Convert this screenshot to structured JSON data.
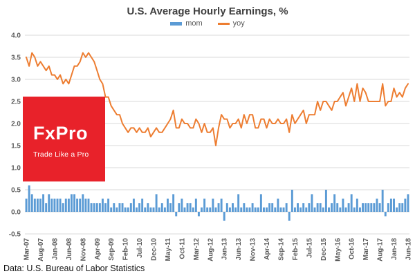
{
  "title": "U.S. Average Hourly Earnings,  %",
  "footer": "Data: U.S. Bureau of Labor Statistics",
  "legend": [
    {
      "label": "mom",
      "color": "#5B9BD5"
    },
    {
      "label": "yoy",
      "color": "#ED7D31"
    }
  ],
  "logo": {
    "line1": "FxPro",
    "line2": "Trade Like a Pro",
    "bg": "#e8222a"
  },
  "chart_data": {
    "type": "bar+line",
    "title": "U.S. Average Hourly Earnings, %",
    "xlabel": "",
    "ylabel": "",
    "ylim": [
      -0.5,
      4.0
    ],
    "ytick_step": 0.5,
    "xtick_every": 5,
    "grid": true,
    "legend_position": "top",
    "x": [
      "Mar-07",
      "Apr-07",
      "May-07",
      "Jun-07",
      "Jul-07",
      "Aug-07",
      "Sep-07",
      "Oct-07",
      "Nov-07",
      "Dec-07",
      "Jan-08",
      "Feb-08",
      "Mar-08",
      "Apr-08",
      "May-08",
      "Jun-08",
      "Jul-08",
      "Aug-08",
      "Sep-08",
      "Oct-08",
      "Nov-08",
      "Dec-08",
      "Jan-09",
      "Feb-09",
      "Mar-09",
      "Apr-09",
      "May-09",
      "Jun-09",
      "Jul-09",
      "Aug-09",
      "Sep-09",
      "Oct-09",
      "Nov-09",
      "Dec-09",
      "Jan-10",
      "Feb-10",
      "Mar-10",
      "Apr-10",
      "May-10",
      "Jun-10",
      "Jul-10",
      "Aug-10",
      "Sep-10",
      "Oct-10",
      "Nov-10",
      "Dec-10",
      "Jan-11",
      "Feb-11",
      "Mar-11",
      "Apr-11",
      "May-11",
      "Jun-11",
      "Jul-11",
      "Aug-11",
      "Sep-11",
      "Oct-11",
      "Nov-11",
      "Dec-11",
      "Jan-12",
      "Feb-12",
      "Mar-12",
      "Apr-12",
      "May-12",
      "Jun-12",
      "Jul-12",
      "Aug-12",
      "Sep-12",
      "Oct-12",
      "Nov-12",
      "Dec-12",
      "Jan-13",
      "Feb-13",
      "Mar-13",
      "Apr-13",
      "May-13",
      "Jun-13",
      "Jul-13",
      "Aug-13",
      "Sep-13",
      "Oct-13",
      "Nov-13",
      "Dec-13",
      "Jan-14",
      "Feb-14",
      "Mar-14",
      "Apr-14",
      "May-14",
      "Jun-14",
      "Jul-14",
      "Aug-14",
      "Sep-14",
      "Oct-14",
      "Nov-14",
      "Dec-14",
      "Jan-15",
      "Feb-15",
      "Mar-15",
      "Apr-15",
      "May-15",
      "Jun-15",
      "Jul-15",
      "Aug-15",
      "Sep-15",
      "Oct-15",
      "Nov-15",
      "Dec-15",
      "Jan-16",
      "Feb-16",
      "Mar-16",
      "Apr-16",
      "May-16",
      "Jun-16",
      "Jul-16",
      "Aug-16",
      "Sep-16",
      "Oct-16",
      "Nov-16",
      "Dec-16",
      "Jan-17",
      "Feb-17",
      "Mar-17",
      "Apr-17",
      "May-17",
      "Jun-17",
      "Jul-17",
      "Aug-17",
      "Sep-17",
      "Oct-17",
      "Nov-17",
      "Dec-17",
      "Jan-18",
      "Feb-18",
      "Mar-18",
      "Apr-18",
      "May-18",
      "Jun-18"
    ],
    "series": [
      {
        "name": "mom",
        "type": "bar",
        "color": "#5B9BD5",
        "values": [
          0.3,
          0.6,
          0.4,
          0.3,
          0.3,
          0.3,
          0.4,
          0.2,
          0.4,
          0.3,
          0.3,
          0.3,
          0.3,
          0.2,
          0.3,
          0.3,
          0.4,
          0.4,
          0.3,
          0.3,
          0.4,
          0.3,
          0.3,
          0.2,
          0.2,
          0.2,
          0.2,
          0.3,
          0.2,
          0.3,
          0.1,
          0.2,
          0.1,
          0.2,
          0.2,
          0.1,
          0.1,
          0.2,
          0.3,
          0.1,
          0.2,
          0.3,
          0.1,
          0.2,
          0.1,
          0.1,
          0.4,
          0.1,
          0.2,
          0.1,
          0.3,
          0.2,
          0.4,
          -0.1,
          0.2,
          0.3,
          0.1,
          0.2,
          0.2,
          0.1,
          0.3,
          -0.1,
          0.1,
          0.3,
          0.1,
          0.1,
          0.3,
          0.1,
          0.2,
          0.3,
          -0.2,
          0.2,
          0.1,
          0.2,
          0.1,
          0.4,
          0.1,
          0.2,
          0.1,
          0.1,
          0.2,
          0.1,
          0.1,
          0.4,
          0.1,
          0.1,
          0.2,
          0.2,
          0.1,
          0.3,
          0.1,
          0.1,
          0.2,
          -0.2,
          0.5,
          0.1,
          0.2,
          0.1,
          0.2,
          0.1,
          0.2,
          0.4,
          0.1,
          0.2,
          0.2,
          0.1,
          0.5,
          0.1,
          0.2,
          0.4,
          0.2,
          0.1,
          0.3,
          0.1,
          0.2,
          0.4,
          0.1,
          0.3,
          0.1,
          0.2,
          0.2,
          0.2,
          0.2,
          0.2,
          0.3,
          0.2,
          0.5,
          -0.1,
          0.2,
          0.3,
          0.3,
          0.1,
          0.2,
          0.2,
          0.3,
          0.4
        ]
      },
      {
        "name": "yoy",
        "type": "line",
        "color": "#ED7D31",
        "values": [
          3.5,
          3.3,
          3.6,
          3.5,
          3.3,
          3.4,
          3.3,
          3.2,
          3.3,
          3.1,
          3.1,
          3.0,
          3.1,
          2.9,
          3.0,
          2.9,
          3.1,
          3.3,
          3.3,
          3.4,
          3.6,
          3.5,
          3.6,
          3.5,
          3.4,
          3.2,
          3.0,
          2.9,
          2.6,
          2.6,
          2.4,
          2.3,
          2.2,
          2.2,
          2.0,
          1.9,
          1.8,
          1.9,
          1.9,
          1.8,
          1.9,
          1.8,
          1.8,
          1.9,
          1.7,
          1.8,
          1.9,
          1.8,
          1.8,
          1.9,
          2.0,
          2.1,
          2.3,
          1.9,
          1.9,
          2.1,
          2.0,
          2.0,
          1.9,
          1.9,
          2.1,
          2.0,
          1.8,
          2.0,
          1.8,
          1.8,
          1.9,
          1.5,
          1.9,
          2.2,
          2.1,
          2.1,
          1.9,
          2.0,
          2.0,
          2.1,
          1.9,
          2.2,
          2.0,
          2.2,
          2.2,
          1.9,
          1.9,
          2.1,
          2.1,
          1.9,
          2.1,
          2.0,
          2.0,
          2.1,
          2.0,
          2.0,
          2.1,
          1.8,
          2.2,
          2.0,
          2.1,
          2.2,
          2.3,
          2.0,
          2.2,
          2.2,
          2.2,
          2.5,
          2.3,
          2.5,
          2.5,
          2.4,
          2.3,
          2.5,
          2.5,
          2.6,
          2.7,
          2.4,
          2.6,
          2.8,
          2.5,
          2.9,
          2.5,
          2.8,
          2.7,
          2.5,
          2.5,
          2.5,
          2.5,
          2.5,
          2.9,
          2.4,
          2.5,
          2.5,
          2.8,
          2.6,
          2.7,
          2.6,
          2.8,
          2.9
        ]
      }
    ]
  }
}
